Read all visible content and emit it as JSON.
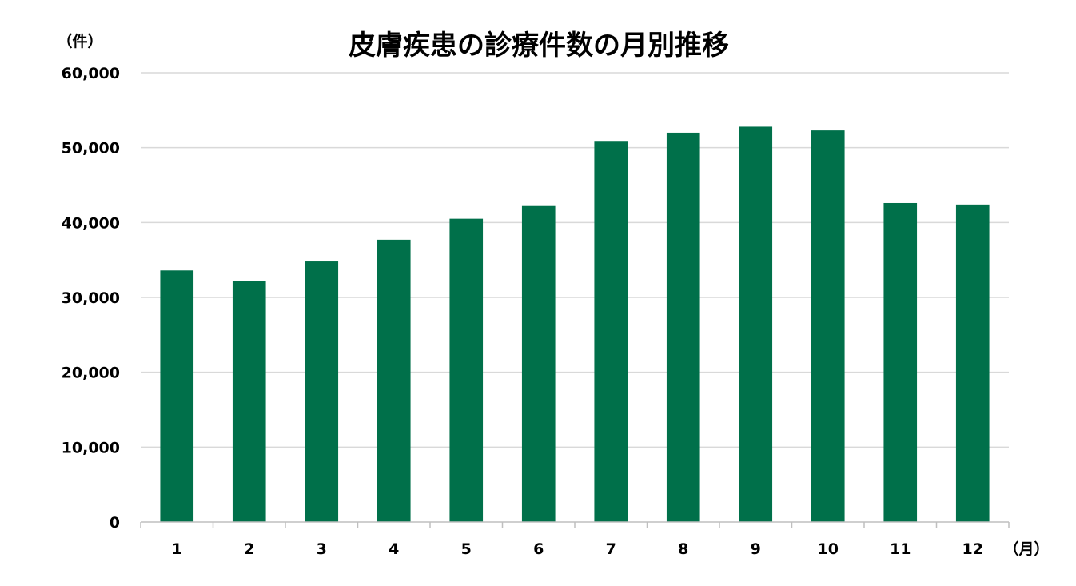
{
  "chart_data": {
    "type": "bar",
    "title": "皮膚疾患の診療件数の月別推移",
    "ylabel": "（件）",
    "xlabel": "（月）",
    "categories": [
      "1",
      "2",
      "3",
      "4",
      "5",
      "6",
      "7",
      "8",
      "9",
      "10",
      "11",
      "12"
    ],
    "values": [
      33600,
      32200,
      34800,
      37700,
      40500,
      42200,
      50900,
      52000,
      52800,
      52300,
      42600,
      42400
    ],
    "ylim": [
      0,
      60000
    ],
    "yticks": [
      0,
      10000,
      20000,
      30000,
      40000,
      50000,
      60000
    ],
    "ytick_labels": [
      "0",
      "10,000",
      "20,000",
      "30,000",
      "40,000",
      "50,000",
      "60,000"
    ],
    "grid": true,
    "legend": "none",
    "bar_color": "#00704a"
  }
}
